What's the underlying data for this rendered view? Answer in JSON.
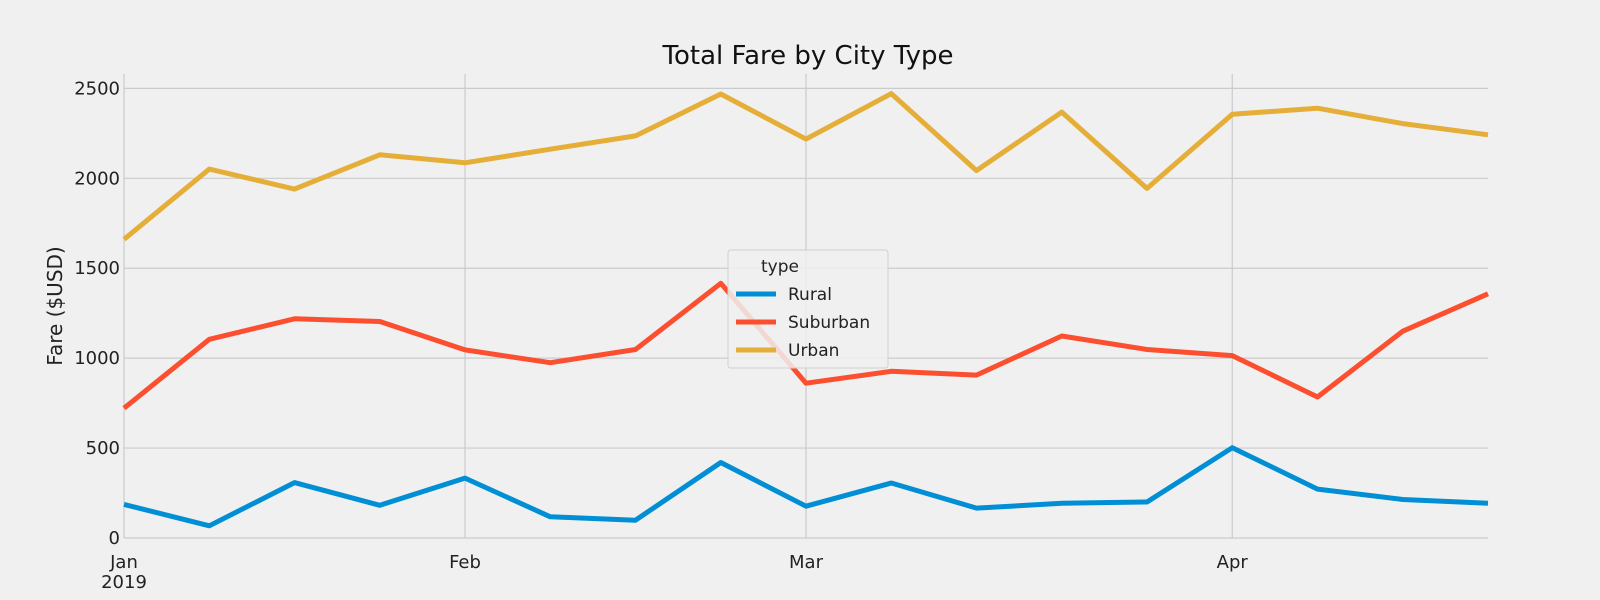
{
  "chart_data": {
    "type": "line",
    "title": "Total Fare by City Type",
    "xlabel": "",
    "ylabel": "Fare ($USD)",
    "ylim": [
      0,
      2580
    ],
    "yticks": [
      0,
      500,
      1000,
      1500,
      2000,
      2500
    ],
    "x": [
      "2019-01-06",
      "2019-01-13",
      "2019-01-20",
      "2019-01-27",
      "2019-02-03",
      "2019-02-10",
      "2019-02-17",
      "2019-02-24",
      "2019-03-03",
      "2019-03-10",
      "2019-03-17",
      "2019-03-24",
      "2019-03-31",
      "2019-04-07",
      "2019-04-14",
      "2019-04-21",
      "2019-04-28"
    ],
    "xlim": [
      "2019-01-06",
      "2019-04-28"
    ],
    "xticks": [
      {
        "date": "2019-01-06",
        "label": "Jan",
        "sublabel": "2019"
      },
      {
        "date": "2019-02-03",
        "label": "Feb",
        "sublabel": ""
      },
      {
        "date": "2019-03-03",
        "label": "Mar",
        "sublabel": ""
      },
      {
        "date": "2019-04-07",
        "label": "Apr",
        "sublabel": ""
      }
    ],
    "grid": true,
    "legend": {
      "title": "type",
      "placement": "center"
    },
    "series": [
      {
        "name": "Rural",
        "color": "#008fd5",
        "values": [
          187,
          68,
          308,
          182,
          333,
          118,
          99,
          420,
          177,
          306,
          166,
          193,
          200,
          502,
          272,
          214,
          193
        ]
      },
      {
        "name": "Suburban",
        "color": "#fc4f30",
        "values": [
          722,
          1105,
          1219,
          1204,
          1046,
          975,
          1048,
          1416,
          861,
          927,
          906,
          1123,
          1048,
          1014,
          784,
          1150,
          1358
        ]
      },
      {
        "name": "Urban",
        "color": "#e5ae38",
        "values": [
          1661,
          2051,
          1940,
          2131,
          2086,
          2162,
          2236,
          2469,
          2218,
          2471,
          2043,
          2368,
          1944,
          2356,
          2390,
          2304,
          2242
        ]
      }
    ]
  }
}
